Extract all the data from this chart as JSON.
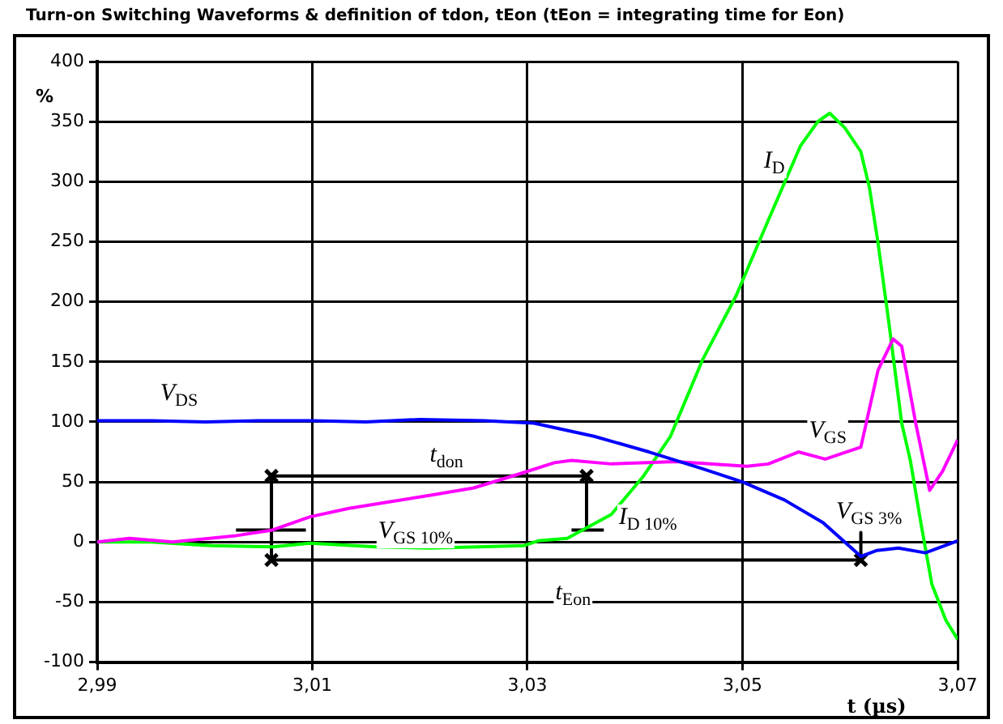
{
  "chart_data": {
    "type": "line",
    "title": "Turn-on Switching Waveforms & definition of tdon, tEon (tEon = integrating time for Eon)",
    "xlabel": "t (µs)",
    "ylabel": "%",
    "xlim": [
      2.99,
      3.07
    ],
    "xticks": [
      {
        "value": 2.99,
        "label": "2,99"
      },
      {
        "value": 3.01,
        "label": "3,01"
      },
      {
        "value": 3.03,
        "label": "3,03"
      },
      {
        "value": 3.05,
        "label": "3,05"
      },
      {
        "value": 3.07,
        "label": "3,07"
      }
    ],
    "ylim": [
      -100,
      400
    ],
    "yticks": [
      -100,
      -50,
      0,
      50,
      100,
      150,
      200,
      250,
      300,
      350,
      400
    ],
    "grid": true,
    "legend": false,
    "marker": "none",
    "series": [
      {
        "color": "#0000ff",
        "x": [
          2.99,
          2.995,
          3.0,
          3.005,
          3.01,
          3.015,
          3.02,
          3.026,
          3.0306,
          3.0362,
          3.0413,
          3.0463,
          3.05,
          3.0539,
          3.0575,
          3.061,
          3.0625,
          3.0645,
          3.067,
          3.07
        ],
        "values": [
          101,
          101,
          100,
          101,
          101,
          100,
          102,
          101,
          99,
          88,
          75,
          61,
          50,
          35,
          16,
          -12,
          -7,
          -5,
          -9,
          1
        ]
      },
      {
        "color": "#ff00ff",
        "x": [
          2.99,
          2.993,
          2.997,
          3.0027,
          3.0063,
          3.0098,
          3.0134,
          3.0169,
          3.021,
          3.025,
          3.029,
          3.0325,
          3.0341,
          3.0378,
          3.0438,
          3.0504,
          3.0524,
          3.0552,
          3.0577,
          3.061,
          3.0626,
          3.064,
          3.0648,
          3.0661,
          3.0674,
          3.0686,
          3.07
        ],
        "values": [
          0,
          3,
          0,
          5,
          10,
          21,
          28,
          33,
          39,
          45,
          56,
          66,
          68,
          65,
          67,
          63,
          65,
          75,
          69,
          79,
          143,
          169,
          163,
          99,
          43,
          59,
          85
        ]
      },
      {
        "color": "#00ff00",
        "x": [
          2.99,
          2.995,
          3.0007,
          3.0063,
          3.0098,
          3.0159,
          3.021,
          3.0297,
          3.031,
          3.0337,
          3.0378,
          3.0408,
          3.0433,
          3.0463,
          3.0494,
          3.0524,
          3.0554,
          3.057,
          3.0581,
          3.0595,
          3.061,
          3.0618,
          3.0626,
          3.0636,
          3.0648,
          3.0656,
          3.0666,
          3.0676,
          3.0689,
          3.07
        ],
        "values": [
          0,
          0,
          -3,
          -4,
          -1,
          -4,
          -5,
          -3,
          1,
          3,
          23,
          55,
          88,
          152,
          205,
          268,
          330,
          350,
          357,
          345,
          325,
          295,
          249,
          183,
          99,
          68,
          15,
          -35,
          -65,
          -81
        ]
      },
      {
        "color": "#000000",
        "marker": "cross",
        "x": [
          3.0062,
          3.0355
        ],
        "values": [
          55,
          55
        ]
      },
      {
        "color": "#000000",
        "marker": "cross",
        "x": [
          3.0062,
          3.061
        ],
        "values": [
          -15,
          -15
        ]
      },
      {
        "color": "#000000",
        "x": [
          3.0062,
          3.0062
        ],
        "values": [
          -15,
          55
        ]
      },
      {
        "color": "#000000",
        "x": [
          3.0029,
          3.0094
        ],
        "values": [
          10,
          10
        ]
      },
      {
        "color": "#000000",
        "x": [
          3.0355,
          3.0355
        ],
        "values": [
          10,
          55
        ]
      },
      {
        "color": "#000000",
        "x": [
          3.0341,
          3.0371
        ],
        "values": [
          10,
          10
        ]
      },
      {
        "color": "#000000",
        "x": [
          3.061,
          3.061
        ],
        "values": [
          8,
          -15
        ]
      }
    ],
    "annotations": [
      "V$_{DS}$",
      "V$_{GS}$",
      "I$_{D}$",
      "t$_{don}$",
      "t$_{Eon}$",
      "V$_{GS 10%}$",
      "I$_{D 10%}$",
      "V$_{GS 3%}$"
    ]
  }
}
